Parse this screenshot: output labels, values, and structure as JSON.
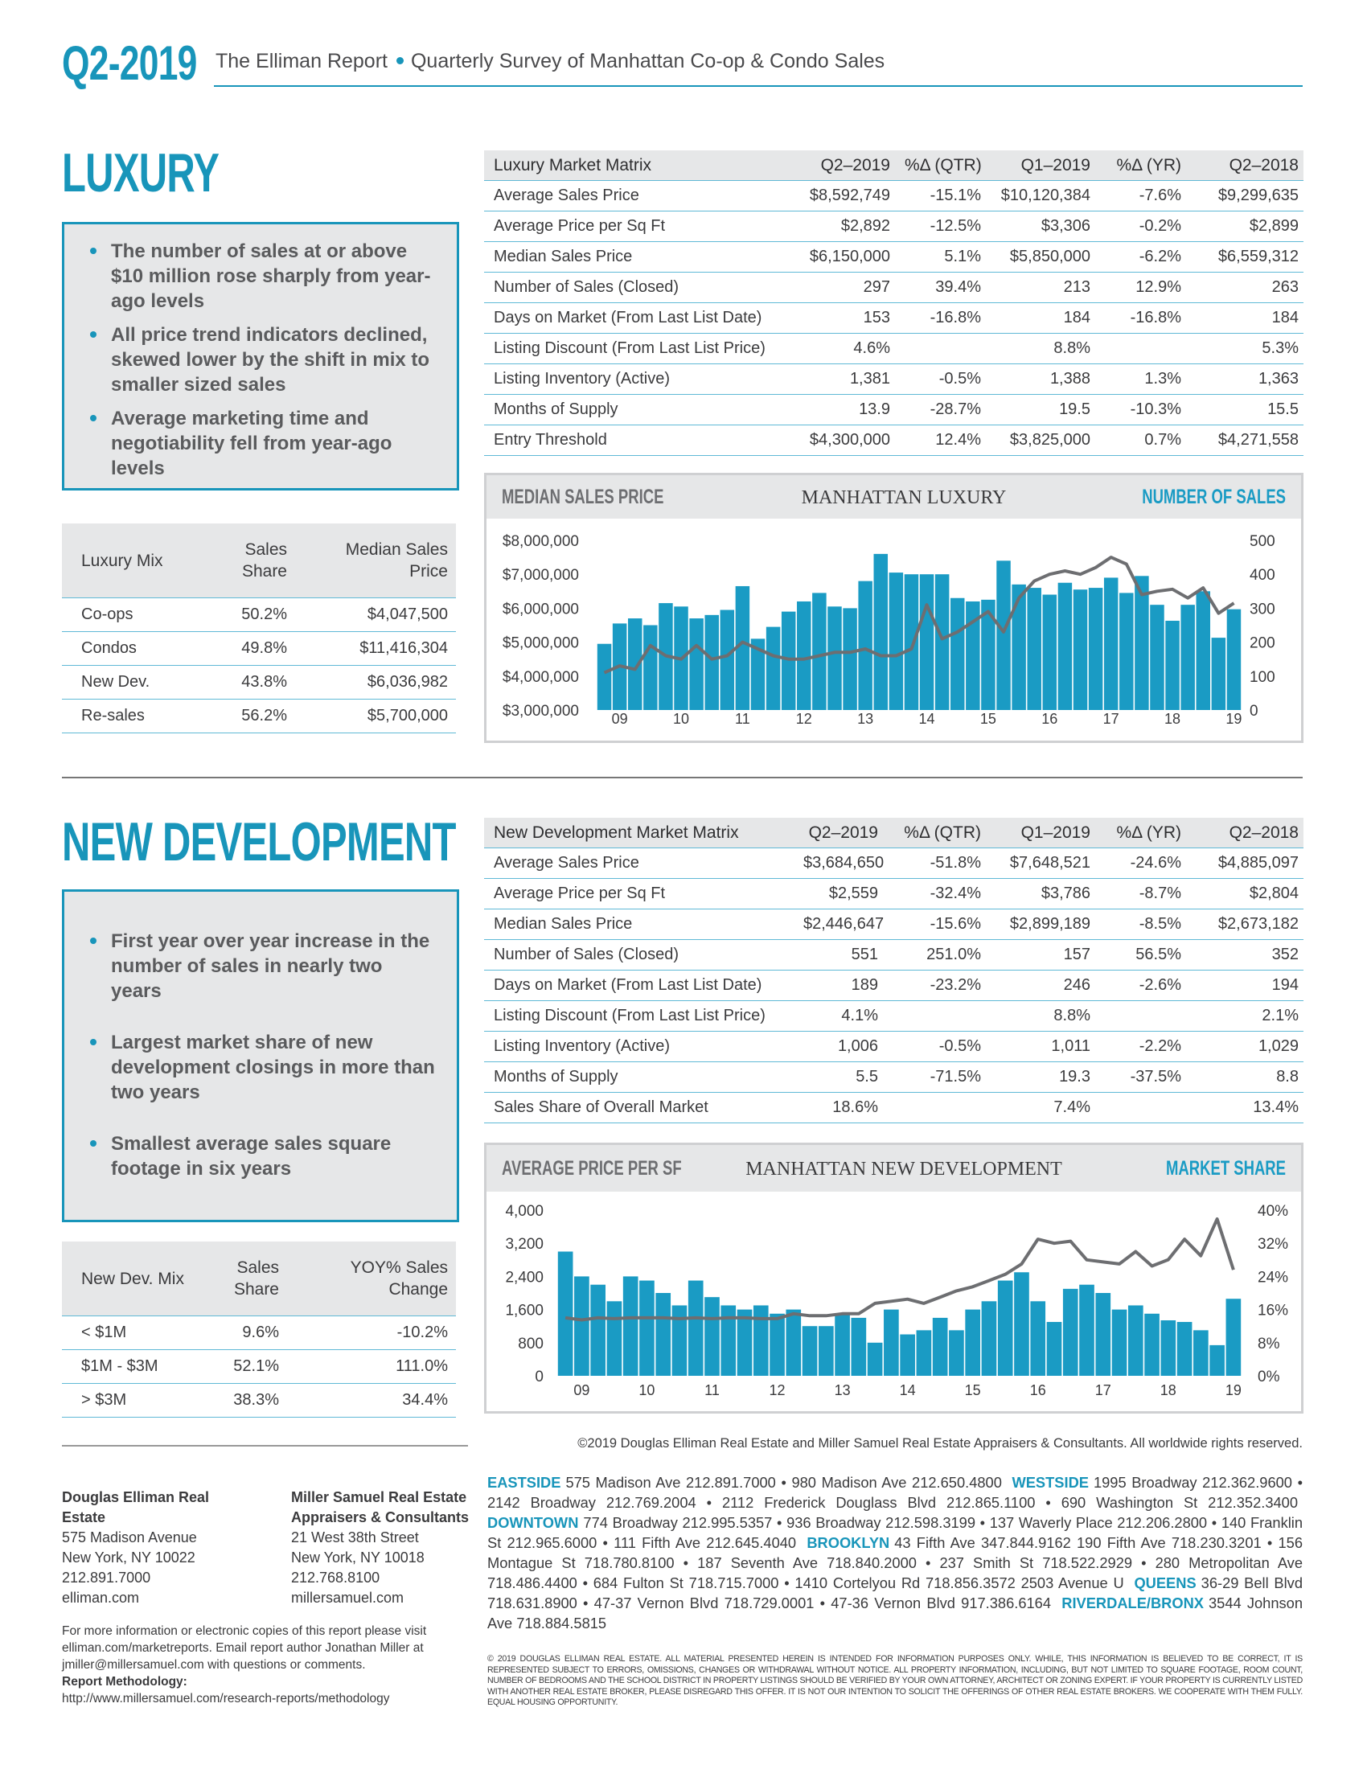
{
  "header": {
    "code": "Q2-2019",
    "title": "The Elliman Report",
    "subtitle": "Quarterly Survey of Manhattan Co-op & Condo Sales"
  },
  "luxury": {
    "heading": "LUXURY",
    "bullets": [
      "The number of sales at or above $10 million rose sharply from year-ago levels",
      "All price trend indicators declined, skewed lower by the shift in mix to smaller sized sales",
      "Average marketing time and negotiability fell from year-ago levels"
    ],
    "matrix": {
      "header": [
        "Luxury Market Matrix",
        "Q2–2019",
        "%Δ (QTR)",
        "Q1–2019",
        "%Δ (YR)",
        "Q2–2018"
      ],
      "rows": [
        [
          "Average Sales Price",
          "$8,592,749",
          "-15.1%",
          "$10,120,384",
          "-7.6%",
          "$9,299,635"
        ],
        [
          "Average Price per Sq Ft",
          "$2,892",
          "-12.5%",
          "$3,306",
          "-0.2%",
          "$2,899"
        ],
        [
          "Median Sales Price",
          "$6,150,000",
          "5.1%",
          "$5,850,000",
          "-6.2%",
          "$6,559,312"
        ],
        [
          "Number of Sales (Closed)",
          "297",
          "39.4%",
          "213",
          "12.9%",
          "263"
        ],
        [
          "Days on Market (From Last List Date)",
          "153",
          "-16.8%",
          "184",
          "-16.8%",
          "184"
        ],
        [
          "Listing Discount (From Last List Price)",
          "4.6%",
          null,
          "8.8%",
          null,
          "5.3%"
        ],
        [
          "Listing Inventory (Active)",
          "1,381",
          "-0.5%",
          "1,388",
          "1.3%",
          "1,363"
        ],
        [
          "Months of Supply",
          "13.9",
          "-28.7%",
          "19.5",
          "-10.3%",
          "15.5"
        ],
        [
          "Entry Threshold",
          "$4,300,000",
          "12.4%",
          "$3,825,000",
          "0.7%",
          "$4,271,558"
        ]
      ]
    },
    "mix": {
      "header": [
        "Luxury Mix",
        "Sales Share",
        "Median Sales Price"
      ],
      "rows": [
        [
          "Co-ops",
          "50.2%",
          "$4,047,500"
        ],
        [
          "Condos",
          "49.8%",
          "$11,416,304"
        ],
        [
          "New Dev.",
          "43.8%",
          "$6,036,982"
        ],
        [
          "Re-sales",
          "56.2%",
          "$5,700,000"
        ]
      ]
    }
  },
  "new_development": {
    "heading": "NEW DEVELOPMENT",
    "bullets": [
      "First year over year increase in the number of sales in nearly two years",
      "Largest market share of new development closings in more than two years",
      "Smallest average sales square footage in six years"
    ],
    "matrix": {
      "header": [
        "New Development Market Matrix",
        "Q2–2019",
        "%Δ (QTR)",
        "Q1–2019",
        "%Δ (YR)",
        "Q2–2018"
      ],
      "rows": [
        [
          "Average Sales Price",
          "$3,684,650",
          "-51.8%",
          "$7,648,521",
          "-24.6%",
          "$4,885,097"
        ],
        [
          "Average Price per Sq Ft",
          "$2,559",
          "-32.4%",
          "$3,786",
          "-8.7%",
          "$2,804"
        ],
        [
          "Median Sales Price",
          "$2,446,647",
          "-15.6%",
          "$2,899,189",
          "-8.5%",
          "$2,673,182"
        ],
        [
          "Number of Sales (Closed)",
          "551",
          "251.0%",
          "157",
          "56.5%",
          "352"
        ],
        [
          "Days on Market (From Last List Date)",
          "189",
          "-23.2%",
          "246",
          "-2.6%",
          "194"
        ],
        [
          "Listing Discount (From Last List Price)",
          "4.1%",
          null,
          "8.8%",
          null,
          "2.1%"
        ],
        [
          "Listing Inventory (Active)",
          "1,006",
          "-0.5%",
          "1,011",
          "-2.2%",
          "1,029"
        ],
        [
          "Months of Supply",
          "5.5",
          "-71.5%",
          "19.3",
          "-37.5%",
          "8.8"
        ],
        [
          "Sales Share of Overall Market",
          "18.6%",
          null,
          "7.4%",
          null,
          "13.4%"
        ]
      ]
    },
    "mix": {
      "header": [
        "New Dev. Mix",
        "Sales Share",
        "YOY% Sales Change"
      ],
      "rows": [
        [
          "< $1M",
          "9.6%",
          "-10.2%"
        ],
        [
          "$1M - $3M",
          "52.1%",
          "111.0%"
        ],
        [
          "> $3M",
          "38.3%",
          "34.4%"
        ]
      ]
    }
  },
  "chart_data": [
    {
      "type": "combo",
      "title": "MANHATTAN LUXURY",
      "categories": [
        null,
        "09",
        null,
        null,
        null,
        "10",
        null,
        null,
        null,
        "11",
        null,
        null,
        null,
        "12",
        null,
        null,
        null,
        "13",
        null,
        null,
        null,
        "14",
        null,
        null,
        null,
        "15",
        null,
        null,
        null,
        "16",
        null,
        null,
        null,
        "17",
        null,
        null,
        null,
        "18",
        null,
        null,
        null,
        "19"
      ],
      "series": [
        {
          "name": "NUMBER OF SALES",
          "type": "bar",
          "axis": "y2",
          "color": "#1a9bc4",
          "values": [
            195,
            255,
            270,
            250,
            315,
            305,
            270,
            280,
            295,
            365,
            210,
            245,
            290,
            320,
            345,
            305,
            300,
            380,
            460,
            405,
            400,
            400,
            400,
            330,
            320,
            325,
            440,
            370,
            360,
            340,
            375,
            355,
            360,
            390,
            345,
            395,
            310,
            263,
            310,
            350,
            213,
            297
          ]
        },
        {
          "name": "MEDIAN SALES PRICE",
          "type": "line",
          "axis": "y",
          "color": "#6d6e71",
          "values": [
            4100000,
            4300000,
            4200000,
            4900000,
            4600000,
            4500000,
            4900000,
            4500000,
            4600000,
            5000000,
            4800000,
            4600000,
            4500000,
            4500000,
            4600000,
            4700000,
            4700000,
            4800000,
            4600000,
            4600000,
            4800000,
            6100000,
            5100000,
            5300000,
            5600000,
            5900000,
            5300000,
            6300000,
            6800000,
            7000000,
            7100000,
            7000000,
            7200000,
            7500000,
            7300000,
            6400000,
            6500000,
            6559312,
            6300000,
            6600000,
            5850000,
            6150000
          ]
        }
      ],
      "ylim": [
        3000000,
        8000000
      ],
      "yticks": [
        {
          "value": 3000000,
          "label": "$3,000,000"
        },
        {
          "value": 4000000,
          "label": "$4,000,000"
        },
        {
          "value": 5000000,
          "label": "$5,000,000"
        },
        {
          "value": 6000000,
          "label": "$6,000,000"
        },
        {
          "value": 7000000,
          "label": "$7,000,000"
        },
        {
          "value": 8000000,
          "label": "$8,000,000"
        }
      ],
      "y2lim": [
        0,
        500
      ],
      "y2ticks": [
        0,
        100,
        200,
        300,
        400,
        500
      ]
    },
    {
      "type": "combo",
      "title": "MANHATTAN NEW DEVELOPMENT",
      "categories": [
        null,
        "09",
        null,
        null,
        null,
        "10",
        null,
        null,
        null,
        "11",
        null,
        null,
        null,
        "12",
        null,
        null,
        null,
        "13",
        null,
        null,
        null,
        "14",
        null,
        null,
        null,
        "15",
        null,
        null,
        null,
        "16",
        null,
        null,
        null,
        "17",
        null,
        null,
        null,
        "18",
        null,
        null,
        null,
        "19"
      ],
      "series": [
        {
          "name": "MARKET SHARE",
          "type": "bar",
          "axis": "y2",
          "color": "#1a9bc4",
          "values": [
            30,
            24,
            22,
            18,
            24,
            23,
            20,
            17,
            23,
            19,
            17,
            16,
            17,
            15,
            16,
            12,
            12,
            15,
            14,
            8,
            16,
            10,
            11,
            14,
            11,
            16,
            18,
            23,
            25,
            18,
            13,
            21,
            22,
            20,
            16,
            17,
            15,
            13.4,
            13,
            11,
            7.4,
            18.6
          ]
        },
        {
          "name": "AVERAGE PRICE PER SF",
          "type": "line",
          "axis": "y",
          "color": "#6d6e71",
          "values": [
            1400,
            1350,
            1400,
            1380,
            1400,
            1400,
            1400,
            1380,
            1400,
            1380,
            1400,
            1400,
            1380,
            1380,
            1500,
            1450,
            1450,
            1500,
            1500,
            1750,
            1800,
            1850,
            1750,
            1900,
            2050,
            2150,
            2300,
            2450,
            2700,
            3300,
            3200,
            3250,
            2800,
            2750,
            2700,
            3000,
            2650,
            2804,
            3300,
            2900,
            3786,
            2559
          ]
        }
      ],
      "ylim": [
        0,
        4000
      ],
      "yticks": [
        0,
        800,
        {
          "value": 1600,
          "label": "1,600"
        },
        {
          "value": 2400,
          "label": "2,400"
        },
        {
          "value": 3200,
          "label": "3,200"
        },
        {
          "value": 4000,
          "label": "4,000"
        }
      ],
      "y2lim": [
        0,
        40
      ],
      "y2ticks": [
        {
          "value": 0,
          "label": "0%"
        },
        {
          "value": 8,
          "label": "8%"
        },
        {
          "value": 16,
          "label": "16%"
        },
        {
          "value": 24,
          "label": "24%"
        },
        {
          "value": 32,
          "label": "32%"
        },
        {
          "value": 40,
          "label": "40%"
        }
      ]
    }
  ],
  "footer": {
    "copyright": "©2019 Douglas Elliman Real Estate and Miller Samuel Real Estate Appraisers & Consultants. All worldwide rights reserved.",
    "contacts": [
      [
        "Douglas Elliman Real Estate",
        "575 Madison Avenue",
        "New York, NY 10022",
        "212.891.7000",
        "elliman.com"
      ],
      [
        "Miller Samuel Real Estate Appraisers & Consultants",
        "21 West 38th Street",
        "New York, NY 10018",
        "212.768.8100",
        "millersamuel.com"
      ]
    ],
    "more_info": "For more information or electronic copies of this report please visit elliman.com/marketreports. Email report author Jonathan Miller at jmiller@millersamuel.com with questions or comments.",
    "methodology_label": "Report Methodology:",
    "methodology_url": "http://www.millersamuel.com/research-reports/methodology",
    "offices": [
      {
        "region": "EASTSIDE",
        "text": "575 Madison Ave 212.891.7000 • 980 Madison Ave 212.650.4800"
      },
      {
        "region": "WESTSIDE",
        "text": "1995 Broadway 212.362.9600 • 2142 Broadway 212.769.2004 • 2112 Frederick Douglass Blvd 212.865.1100 • 690 Washington St 212.352.3400"
      },
      {
        "region": "DOWNTOWN",
        "text": "774 Broadway 212.995.5357 • 936 Broadway 212.598.3199 • 137 Waverly Place 212.206.2800 • 140 Franklin St 212.965.6000 • 111 Fifth Ave 212.645.4040"
      },
      {
        "region": "BROOKLYN",
        "text": "43 Fifth Ave 347.844.9162 190 Fifth Ave 718.230.3201 • 156 Montague St 718.780.8100 • 187 Seventh Ave 718.840.2000 • 237 Smith St 718.522.2929 • 280 Metropolitan Ave 718.486.4400 • 684 Fulton St 718.715.7000 • 1410 Cortelyou Rd 718.856.3572 2503 Avenue U"
      },
      {
        "region": "QUEENS",
        "text": "36-29 Bell Blvd 718.631.8900 • 47-37 Vernon Blvd 718.729.0001 • 47-36 Vernon Blvd 917.386.6164"
      },
      {
        "region": "RIVERDALE/BRONX",
        "text": "3544 Johnson Ave 718.884.5815"
      }
    ],
    "disclaimer": "© 2019 DOUGLAS ELLIMAN REAL ESTATE. ALL MATERIAL PRESENTED HEREIN IS INTENDED FOR INFORMATION PURPOSES ONLY. WHILE, THIS INFORMATION IS BELIEVED TO BE CORRECT, IT IS REPRESENTED SUBJECT TO ERRORS, OMISSIONS, CHANGES OR WITHDRAWAL WITHOUT NOTICE. ALL PROPERTY INFORMATION, INCLUDING, BUT NOT LIMITED TO SQUARE FOOTAGE, ROOM COUNT, NUMBER OF BEDROOMS AND THE SCHOOL DISTRICT IN PROPERTY LISTINGS SHOULD BE VERIFIED BY YOUR OWN ATTORNEY, ARCHITECT OR ZONING EXPERT. IF YOUR PROPERTY IS CURRENTLY LISTED WITH ANOTHER REAL ESTATE BROKER, PLEASE DISREGARD THIS OFFER. IT IS NOT OUR INTENTION TO SOLICIT THE OFFERINGS OF OTHER REAL ESTATE BROKERS. WE COOPERATE WITH THEM FULLY. EQUAL HOUSING OPPORTUNITY."
  }
}
